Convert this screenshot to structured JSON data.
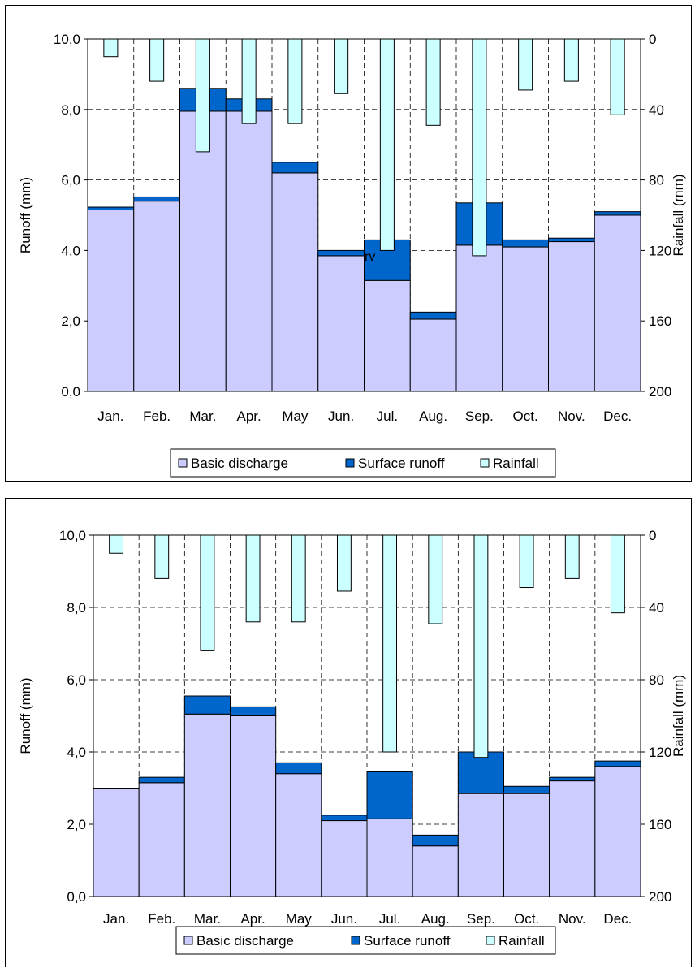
{
  "chart_data": [
    {
      "type": "bar",
      "categories": [
        "Jan.",
        "Feb.",
        "Mar.",
        "Apr.",
        "May",
        "Jun.",
        "Jul.",
        "Aug.",
        "Sep.",
        "Oct.",
        "Nov.",
        "Dec."
      ],
      "series": [
        {
          "name": "Basic discharge",
          "axis": "left",
          "stacked": true,
          "color": "#ccccff",
          "values": [
            5.15,
            5.4,
            7.95,
            7.95,
            6.2,
            3.85,
            3.15,
            2.05,
            4.15,
            4.1,
            4.25,
            5.0
          ]
        },
        {
          "name": "Surface runoff",
          "axis": "left",
          "stacked": true,
          "color": "#0066cc",
          "values": [
            0.08,
            0.12,
            0.65,
            0.35,
            0.3,
            0.15,
            1.15,
            0.2,
            1.2,
            0.2,
            0.1,
            0.1
          ]
        },
        {
          "name": "Rainfall",
          "axis": "right",
          "inverted": true,
          "color": "#ccffff",
          "values": [
            10,
            24,
            64,
            48,
            48,
            31,
            120,
            49,
            123,
            29,
            24,
            43
          ]
        }
      ],
      "ylabel": "Runoff (mm)",
      "ylabel_right": "Rainfall (mm)",
      "ylim": [
        0,
        10
      ],
      "ylim_right": [
        200,
        0
      ],
      "yticks": [
        "0,0",
        "2,0",
        "4,0",
        "6,0",
        "8,0",
        "10,0"
      ],
      "yticks_right": [
        "200",
        "160",
        "120",
        "80",
        "40",
        "0"
      ],
      "grid": true,
      "legend_position": "bottom",
      "annotation": "rv"
    },
    {
      "type": "bar",
      "categories": [
        "Jan.",
        "Feb.",
        "Mar.",
        "Apr.",
        "May",
        "Jun.",
        "Jul.",
        "Aug.",
        "Sep.",
        "Oct.",
        "Nov.",
        "Dec."
      ],
      "series": [
        {
          "name": "Basic discharge",
          "axis": "left",
          "stacked": true,
          "color": "#ccccff",
          "values": [
            3.0,
            3.15,
            5.05,
            5.0,
            3.4,
            2.1,
            2.15,
            1.4,
            2.85,
            2.85,
            3.2,
            3.6
          ]
        },
        {
          "name": "Surface runoff",
          "axis": "left",
          "stacked": true,
          "color": "#0066cc",
          "values": [
            0.0,
            0.15,
            0.5,
            0.25,
            0.3,
            0.15,
            1.3,
            0.3,
            1.15,
            0.2,
            0.1,
            0.15
          ]
        },
        {
          "name": "Rainfall",
          "axis": "right",
          "inverted": true,
          "color": "#ccffff",
          "values": [
            10,
            24,
            64,
            48,
            48,
            31,
            120,
            49,
            123,
            29,
            24,
            43
          ]
        }
      ],
      "ylabel": "Runoff (mm)",
      "ylabel_right": "Rainfall (mm)",
      "ylim": [
        0,
        10
      ],
      "ylim_right": [
        200,
        0
      ],
      "yticks": [
        "0,0",
        "2,0",
        "4,0",
        "6,0",
        "8,0",
        "10,0"
      ],
      "yticks_right": [
        "200",
        "160",
        "120",
        "80",
        "40",
        "0"
      ],
      "grid": true,
      "legend_position": "bottom"
    }
  ]
}
